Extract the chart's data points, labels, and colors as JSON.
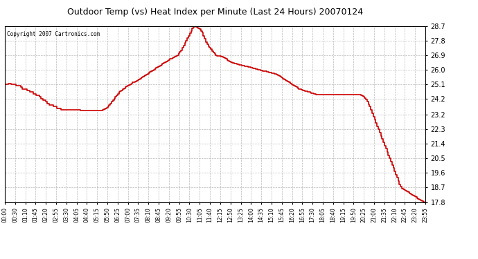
{
  "title": "Outdoor Temp (vs) Heat Index per Minute (Last 24 Hours) 20070124",
  "copyright_text": "Copyright 2007 Cartronics.com",
  "line_color": "#cc0000",
  "background_color": "#ffffff",
  "plot_bg_color": "#ffffff",
  "grid_color": "#aaaaaa",
  "ylim": [
    17.8,
    28.7
  ],
  "yticks": [
    17.8,
    18.7,
    19.6,
    20.5,
    21.4,
    22.3,
    23.2,
    24.2,
    25.1,
    26.0,
    26.9,
    27.8,
    28.7
  ],
  "xtick_labels": [
    "00:00",
    "00:30",
    "01:10",
    "01:45",
    "02:20",
    "02:55",
    "03:30",
    "04:05",
    "04:40",
    "05:15",
    "05:50",
    "06:25",
    "07:00",
    "07:35",
    "08:10",
    "08:45",
    "09:20",
    "09:55",
    "10:30",
    "11:05",
    "11:40",
    "12:15",
    "12:50",
    "13:25",
    "14:00",
    "14:35",
    "15:10",
    "15:45",
    "16:20",
    "16:55",
    "17:30",
    "18:05",
    "18:40",
    "19:15",
    "19:50",
    "20:25",
    "21:00",
    "21:35",
    "22:10",
    "22:45",
    "23:20",
    "23:55"
  ],
  "data_y": [
    25.1,
    25.1,
    25.1,
    25.15,
    25.15,
    25.1,
    25.1,
    25.1,
    25.1,
    25.0,
    25.0,
    25.0,
    25.0,
    24.9,
    24.8,
    24.8,
    24.8,
    24.8,
    24.7,
    24.7,
    24.6,
    24.6,
    24.6,
    24.5,
    24.5,
    24.4,
    24.4,
    24.4,
    24.3,
    24.2,
    24.2,
    24.1,
    24.1,
    24.0,
    23.9,
    23.9,
    23.8,
    23.8,
    23.8,
    23.7,
    23.7,
    23.7,
    23.6,
    23.6,
    23.6,
    23.5,
    23.5,
    23.5,
    23.5,
    23.5,
    23.5,
    23.5,
    23.5,
    23.5,
    23.5,
    23.5,
    23.5,
    23.5,
    23.5,
    23.5,
    23.5,
    23.45,
    23.45,
    23.45,
    23.45,
    23.45,
    23.45,
    23.45,
    23.45,
    23.45,
    23.45,
    23.45,
    23.45,
    23.45,
    23.45,
    23.45,
    23.45,
    23.45,
    23.45,
    23.5,
    23.55,
    23.6,
    23.65,
    23.7,
    23.8,
    23.9,
    24.0,
    24.1,
    24.2,
    24.3,
    24.4,
    24.5,
    24.6,
    24.65,
    24.7,
    24.8,
    24.85,
    24.9,
    24.95,
    25.0,
    25.05,
    25.1,
    25.15,
    25.2,
    25.2,
    25.25,
    25.3,
    25.35,
    25.4,
    25.45,
    25.5,
    25.55,
    25.6,
    25.65,
    25.7,
    25.75,
    25.8,
    25.85,
    25.9,
    25.95,
    26.0,
    26.05,
    26.1,
    26.15,
    26.2,
    26.25,
    26.3,
    26.35,
    26.4,
    26.45,
    26.5,
    26.55,
    26.6,
    26.65,
    26.65,
    26.7,
    26.75,
    26.8,
    26.85,
    26.9,
    27.0,
    27.1,
    27.2,
    27.35,
    27.5,
    27.65,
    27.8,
    27.95,
    28.1,
    28.25,
    28.4,
    28.55,
    28.65,
    28.7,
    28.65,
    28.6,
    28.55,
    28.5,
    28.4,
    28.3,
    28.1,
    27.9,
    27.7,
    27.55,
    27.45,
    27.35,
    27.25,
    27.15,
    27.05,
    26.95,
    26.9,
    26.85,
    26.85,
    26.82,
    26.8,
    26.78,
    26.75,
    26.7,
    26.65,
    26.6,
    26.55,
    26.5,
    26.45,
    26.42,
    26.4,
    26.38,
    26.36,
    26.34,
    26.32,
    26.3,
    26.28,
    26.26,
    26.24,
    26.22,
    26.2,
    26.18,
    26.16,
    26.14,
    26.12,
    26.1,
    26.08,
    26.06,
    26.04,
    26.02,
    26.0,
    25.98,
    25.96,
    25.94,
    25.92,
    25.9,
    25.88,
    25.86,
    25.84,
    25.82,
    25.8,
    25.78,
    25.76,
    25.74,
    25.72,
    25.7,
    25.65,
    25.6,
    25.55,
    25.5,
    25.45,
    25.4,
    25.35,
    25.3,
    25.25,
    25.2,
    25.15,
    25.1,
    25.05,
    25.0,
    24.95,
    24.9,
    24.85,
    24.8,
    24.78,
    24.75,
    24.72,
    24.7,
    24.68,
    24.65,
    24.62,
    24.6,
    24.58,
    24.55,
    24.52,
    24.5,
    24.48,
    24.45,
    24.45,
    24.45,
    24.45,
    24.45,
    24.45,
    24.45,
    24.45,
    24.45,
    24.45,
    24.45,
    24.45,
    24.45,
    24.45,
    24.45,
    24.45,
    24.45,
    24.45,
    24.45,
    24.45,
    24.45,
    24.45,
    24.45,
    24.45,
    24.45,
    24.45,
    24.45,
    24.45,
    24.45,
    24.45,
    24.45,
    24.45,
    24.45,
    24.45,
    24.45,
    24.45,
    24.42,
    24.38,
    24.32,
    24.25,
    24.15,
    24.0,
    23.85,
    23.7,
    23.5,
    23.3,
    23.1,
    22.9,
    22.7,
    22.5,
    22.3,
    22.1,
    21.9,
    21.7,
    21.5,
    21.3,
    21.1,
    20.9,
    20.7,
    20.5,
    20.3,
    20.1,
    19.9,
    19.7,
    19.5,
    19.3,
    19.1,
    18.9,
    18.75,
    18.65,
    18.6,
    18.55,
    18.5,
    18.45,
    18.4,
    18.35,
    18.3,
    18.25,
    18.2,
    18.15,
    18.1,
    18.05,
    18.0,
    17.95,
    17.9,
    17.85,
    17.82,
    17.8,
    17.8
  ]
}
